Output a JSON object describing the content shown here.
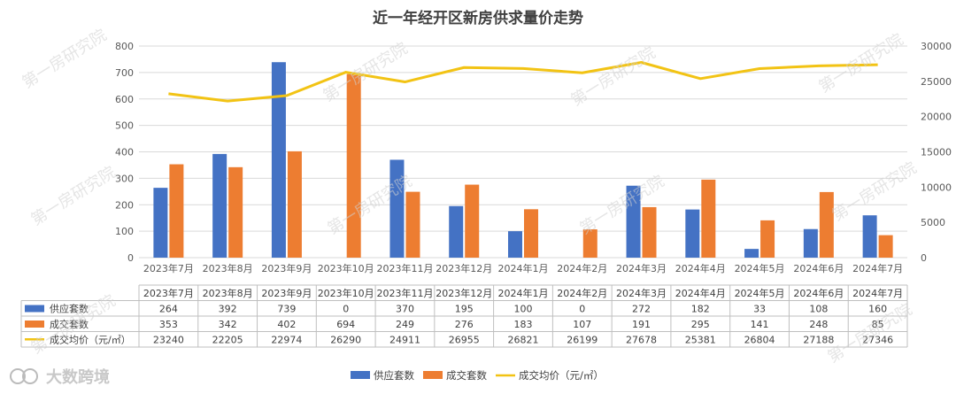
{
  "chart_data": {
    "type": "bar",
    "title": "近一年经开区新房供求量价走势",
    "categories": [
      "2023年7月",
      "2023年8月",
      "2023年9月",
      "2023年10月",
      "2023年11月",
      "2023年12月",
      "2024年1月",
      "2024年2月",
      "2024年3月",
      "2024年4月",
      "2024年5月",
      "2024年6月",
      "2024年7月"
    ],
    "series": [
      {
        "name": "供应套数",
        "type": "bar",
        "axis": "left",
        "color": "#4472C4",
        "values": [
          264,
          392,
          739,
          0,
          370,
          195,
          100,
          0,
          272,
          182,
          33,
          108,
          160
        ]
      },
      {
        "name": "成交套数",
        "type": "bar",
        "axis": "left",
        "color": "#ED7D31",
        "values": [
          353,
          342,
          402,
          694,
          249,
          276,
          183,
          107,
          191,
          295,
          141,
          248,
          85
        ]
      },
      {
        "name": "成交均价（元/㎡）",
        "type": "line",
        "axis": "right",
        "color": "#F2C314",
        "values": [
          23240,
          22205,
          22974,
          26290,
          24911,
          26955,
          26821,
          26199,
          27678,
          25381,
          26804,
          27188,
          27346
        ]
      }
    ],
    "y_left": {
      "min": 0,
      "max": 800,
      "step": 100
    },
    "y_right": {
      "min": 0,
      "max": 30000,
      "step": 5000
    },
    "legend_position": "bottom",
    "grid": true,
    "data_table": true,
    "legend_labels": [
      "供应套数",
      "成交套数",
      "成交均价（元/㎡）"
    ]
  },
  "legend": {
    "supply": "供应套数",
    "deal": "成交套数",
    "price": "成交均价（元/㎡）"
  },
  "watermark": "第一房研究院",
  "source_logo": "大数跨境"
}
